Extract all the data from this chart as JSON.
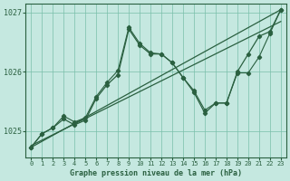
{
  "title": "Graphe pression niveau de la mer (hPa)",
  "background_color": "#c5e8e0",
  "grid_color": "#7abfaa",
  "line_color": "#2a6040",
  "xlim": [
    -0.5,
    23.5
  ],
  "ylim": [
    1024.55,
    1027.15
  ],
  "yticks": [
    1025,
    1026,
    1027
  ],
  "xticks": [
    0,
    1,
    2,
    3,
    4,
    5,
    6,
    7,
    8,
    9,
    10,
    11,
    12,
    13,
    14,
    15,
    16,
    17,
    18,
    19,
    20,
    21,
    22,
    23
  ],
  "series_main": {
    "x": [
      0,
      1,
      2,
      3,
      4,
      5,
      6,
      7,
      8,
      9,
      10,
      11,
      12,
      13,
      14,
      15,
      16,
      17,
      18,
      19,
      20,
      21,
      22,
      23
    ],
    "y": [
      1024.72,
      1024.95,
      1025.05,
      1025.2,
      1025.1,
      1025.18,
      1025.55,
      1025.78,
      1025.95,
      1026.72,
      1026.45,
      1026.3,
      1026.3,
      1026.15,
      1025.9,
      1025.65,
      1025.3,
      1025.47,
      1025.47,
      1026.0,
      1026.3,
      1026.6,
      1026.68,
      1027.05
    ]
  },
  "series_upper": {
    "x": [
      0,
      1,
      2,
      3,
      4,
      5,
      6,
      7,
      8,
      9,
      10,
      11,
      12,
      13,
      14,
      15,
      16,
      17,
      18,
      19,
      20,
      21,
      22,
      23
    ],
    "y": [
      1024.72,
      1024.95,
      1025.05,
      1025.25,
      1025.15,
      1025.22,
      1025.58,
      1025.82,
      1026.02,
      1026.75,
      1026.48,
      1026.32,
      1026.3,
      1026.15,
      1025.9,
      1025.68,
      1025.35,
      1025.47,
      1025.47,
      1025.98,
      1025.98,
      1026.25,
      1026.65,
      1027.05
    ]
  },
  "trend1": {
    "x": [
      0,
      23
    ],
    "y": [
      1024.72,
      1027.05
    ]
  },
  "trend2": {
    "x": [
      0,
      23
    ],
    "y": [
      1024.75,
      1026.85
    ]
  }
}
